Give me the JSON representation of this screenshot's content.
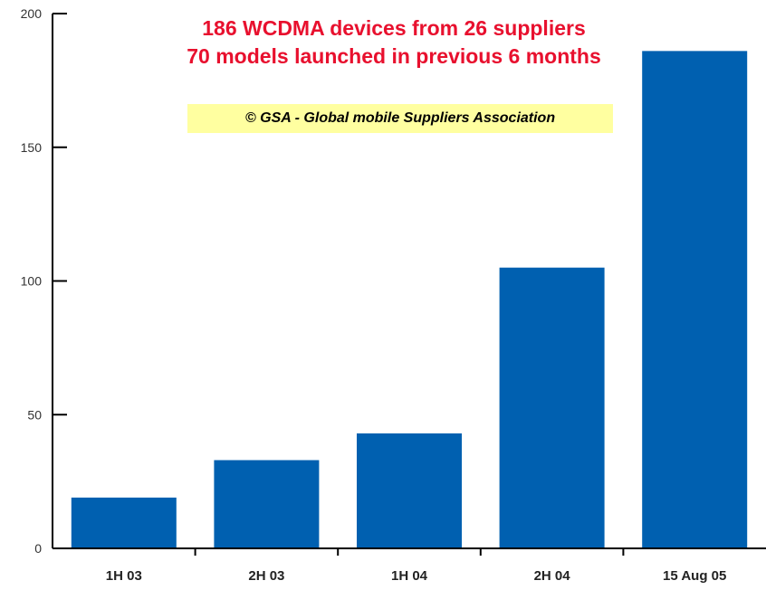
{
  "colors": {
    "bar": "#0060b0",
    "headline": "#e8102e",
    "credit_background": "#ffffa0",
    "axis": "#000000"
  },
  "chart_data": {
    "type": "bar",
    "title": "186 WCDMA devices from 26 suppliers",
    "subtitle": "70 models launched in previous 6 months",
    "annotation": "© GSA - Global mobile Suppliers Association",
    "categories": [
      "1H 03",
      "2H 03",
      "1H 04",
      "2H 04",
      "15 Aug 05"
    ],
    "values": [
      19,
      33,
      43,
      105,
      186
    ],
    "xlabel": "",
    "ylabel": "",
    "ylim": [
      0,
      200
    ],
    "yticks": [
      0,
      50,
      100,
      150,
      200
    ],
    "grid": false,
    "legend": "none"
  }
}
